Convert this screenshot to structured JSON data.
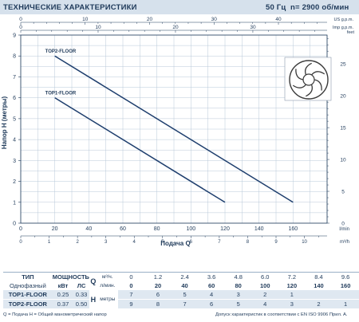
{
  "header": {
    "title": "ТЕХНИЧЕСКИЕ ХАРАКТЕРИСТИКИ",
    "frequency": "50 Гц",
    "speed": "n= 2900 об/мин"
  },
  "chart_data": {
    "type": "line",
    "ylabel": "Напор  H  (метры)",
    "xlabel": "Подача  Q",
    "x_unit": "l/min",
    "x2_unit": "m³/h",
    "top_unit_us": "US g.p.m.",
    "top_unit_imp": "Imp g.p.m.",
    "right_unit": "feet",
    "xlim": [
      0,
      180
    ],
    "ylim": [
      0,
      9
    ],
    "x_ticks": [
      "0",
      "20",
      "40",
      "60",
      "80",
      "100",
      "120",
      "140",
      "160"
    ],
    "x_tick_values": [
      0,
      20,
      40,
      60,
      80,
      100,
      120,
      140,
      160
    ],
    "y_ticks": [
      "0",
      "1",
      "2",
      "3",
      "4",
      "5",
      "6",
      "7",
      "8",
      "9"
    ],
    "y_tick_values": [
      0,
      1,
      2,
      3,
      4,
      5,
      6,
      7,
      8,
      9
    ],
    "m3h_ticks": [
      "0",
      "1",
      "2",
      "3",
      "4",
      "5",
      "6",
      "7",
      "8",
      "9",
      "10"
    ],
    "m3h_tick_values": [
      0,
      1,
      2,
      3,
      4,
      5,
      6,
      7,
      8,
      9,
      10
    ],
    "us_ticks": [
      "0",
      "10",
      "20",
      "30",
      "40"
    ],
    "us_tick_values": [
      0,
      10,
      20,
      30,
      40
    ],
    "imp_ticks": [
      "0",
      "10",
      "20",
      "30"
    ],
    "imp_tick_values": [
      0,
      10,
      20,
      30
    ],
    "feet_ticks": [
      "0",
      "5",
      "10",
      "15",
      "20",
      "25"
    ],
    "feet_tick_values": [
      0,
      5,
      10,
      15,
      20,
      25
    ],
    "grid": true,
    "series": [
      {
        "name": "TOP2-FLOOR",
        "x": [
          20,
          160
        ],
        "y": [
          8.0,
          1.0
        ]
      },
      {
        "name": "TOP1-FLOOR",
        "x": [
          20,
          120
        ],
        "y": [
          6.0,
          1.0
        ]
      }
    ]
  },
  "table": {
    "type_label": "ТИП",
    "power_label": "МОЩНОСТЬ",
    "phase_label": "Однофазный",
    "kw_label": "кВт",
    "hp_label": "ЛС",
    "q_label": "Q",
    "m3h_unit": "м³/ч.",
    "lmin_unit": "л/мин.",
    "h_label": "H",
    "h_unit": "метры",
    "m3h_values": [
      "0",
      "1.2",
      "2.4",
      "3.6",
      "4.8",
      "6.0",
      "7.2",
      "8.4",
      "9.6"
    ],
    "lmin_values": [
      "0",
      "20",
      "40",
      "60",
      "80",
      "100",
      "120",
      "140",
      "160"
    ],
    "rows": [
      {
        "model": "TOP1-FLOOR",
        "kw": "0.25",
        "hp": "0.33",
        "h": [
          "7",
          "6",
          "5",
          "4",
          "3",
          "2",
          "1",
          "",
          ""
        ]
      },
      {
        "model": "TOP2-FLOOR",
        "kw": "0.37",
        "hp": "0.50",
        "h": [
          "9",
          "8",
          "7",
          "6",
          "5",
          "4",
          "3",
          "2",
          "1"
        ]
      }
    ]
  },
  "footer": {
    "left": "Q = Подача  H = Общий манометрический напор",
    "right": "Допуск характеристик в соответствии с EN ISO 9906 Прил. A."
  },
  "colors": {
    "curve": "#1f3f6e",
    "grid": "#b8c8d8",
    "text": "#1f3a5a",
    "header_bg": "#d6e1ec"
  }
}
